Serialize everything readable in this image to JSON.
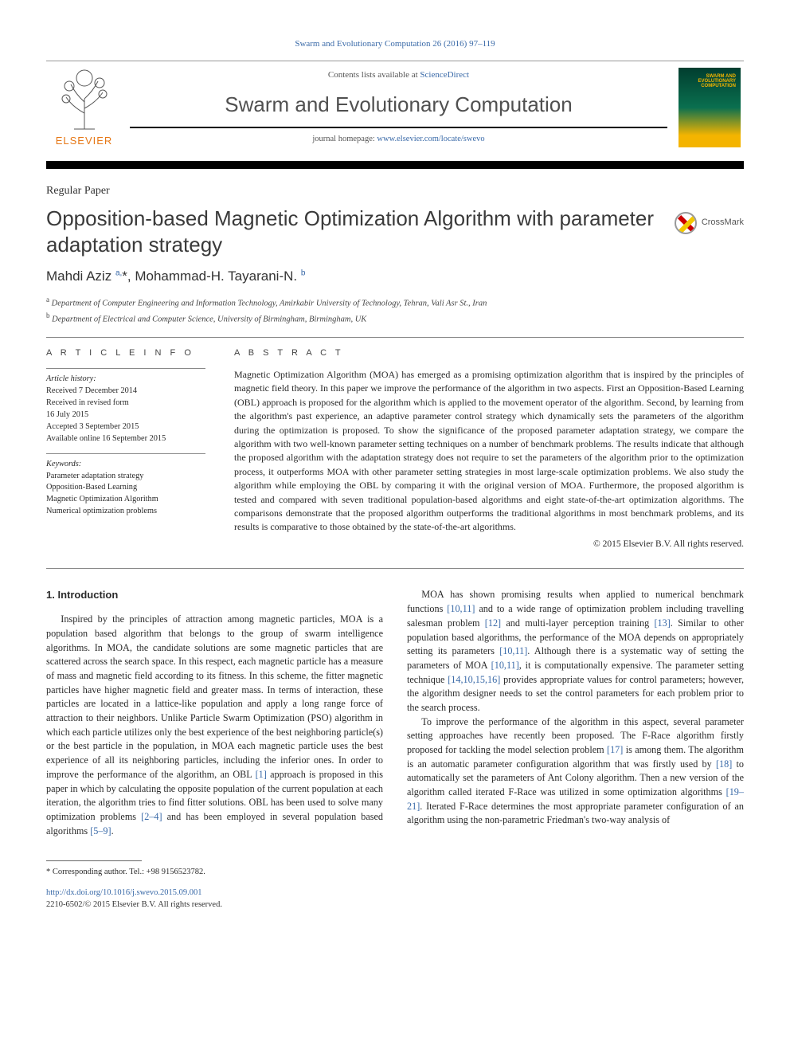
{
  "journal_ref": {
    "prefix": "Swarm and Evolutionary Computation 26 (2016) 97–119",
    "link_text": "Swarm and Evolutionary Computation 26 (2016) 97–119"
  },
  "header": {
    "contents_prefix": "Contents lists available at ",
    "contents_link": "ScienceDirect",
    "journal_title": "Swarm and Evolutionary Computation",
    "homepage_prefix": "journal homepage: ",
    "homepage_url": "www.elsevier.com/locate/swevo",
    "elsevier_word": "ELSEVIER",
    "cover_text": "SWARM AND\nEVOLUTIONARY\nCOMPUTATION"
  },
  "paper_type": "Regular Paper",
  "title": "Opposition-based Magnetic Optimization Algorithm with parameter adaptation strategy",
  "crossmark_label": "CrossMark",
  "authors_html": "Mahdi Aziz <sup>a,</sup><span class=\"star\">*</span>, Mohammad-H. Tayarani-N. <sup>b</sup>",
  "affiliations": [
    {
      "sup": "a",
      "text": "Department of Computer Engineering and Information Technology, Amirkabir University of Technology, Tehran, Vali Asr St., Iran"
    },
    {
      "sup": "b",
      "text": "Department of Electrical and Computer Science, University of Birmingham, Birmingham, UK"
    }
  ],
  "article_info_heading": "A R T I C L E  I N F O",
  "abstract_heading": "A B S T R A C T",
  "history": {
    "lead": "Article history:",
    "lines": [
      "Received 7 December 2014",
      "Received in revised form",
      "16 July 2015",
      "Accepted 3 September 2015",
      "Available online 16 September 2015"
    ]
  },
  "keywords": {
    "lead": "Keywords:",
    "items": [
      "Parameter adaptation strategy",
      "Opposition-Based Learning",
      "Magnetic Optimization Algorithm",
      "Numerical optimization problems"
    ]
  },
  "abstract": "Magnetic Optimization Algorithm (MOA) has emerged as a promising optimization algorithm that is inspired by the principles of magnetic field theory. In this paper we improve the performance of the algorithm in two aspects. First an Opposition-Based Learning (OBL) approach is proposed for the algorithm which is applied to the movement operator of the algorithm. Second, by learning from the algorithm's past experience, an adaptive parameter control strategy which dynamically sets the parameters of the algorithm during the optimization is proposed. To show the significance of the proposed parameter adaptation strategy, we compare the algorithm with two well-known parameter setting techniques on a number of benchmark problems. The results indicate that although the proposed algorithm with the adaptation strategy does not require to set the parameters of the algorithm prior to the optimization process, it outperforms MOA with other parameter setting strategies in most large-scale optimization problems. We also study the algorithm while employing the OBL by comparing it with the original version of MOA. Furthermore, the proposed algorithm is tested and compared with seven traditional population-based algorithms and eight state-of-the-art optimization algorithms. The comparisons demonstrate that the proposed algorithm outperforms the traditional algorithms in most benchmark problems, and its results is comparative to those obtained by the state-of-the-art algorithms.",
  "copyright_line": "© 2015 Elsevier B.V. All rights reserved.",
  "intro_heading": "1.  Introduction",
  "body_paragraphs": [
    "Inspired by the principles of attraction among magnetic particles, MOA is a population based algorithm that belongs to the group of swarm intelligence algorithms. In MOA, the candidate solutions are some magnetic particles that are scattered across the search space. In this respect, each magnetic particle has a measure of mass and magnetic field according to its fitness. In this scheme, the fitter magnetic particles have higher magnetic field and greater mass. In terms of interaction, these particles are located in a lattice-like population and apply a long range force of attraction to their neighbors. Unlike Particle Swarm Optimization (PSO) algorithm in which each particle utilizes only the best experience of the best neighboring particle(s) or the best particle in the population, in MOA each magnetic particle uses the best experience of all its neighboring particles, including the inferior ones. In order to improve the performance of the algorithm, an OBL <a class=\"cite\">[1]</a> approach is proposed in this paper in which by calculating the opposite population of the current population at each iteration, the algorithm tries to find fitter solutions. OBL has been used to solve many optimization problems <a class=\"cite\">[2–4]</a> and has been employed in several population based algorithms <a class=\"cite\">[5–9]</a>.",
    "MOA has shown promising results when applied to numerical benchmark functions <a class=\"cite\">[10,11]</a> and to a wide range of optimization problem including travelling salesman problem <a class=\"cite\">[12]</a> and multi-layer perception training <a class=\"cite\">[13]</a>. Similar to other population based algorithms, the performance of the MOA depends on appropriately setting its parameters <a class=\"cite\">[10,11]</a>. Although there is a systematic way of setting the parameters of MOA <a class=\"cite\">[10,11]</a>, it is computationally expensive. The parameter setting technique <a class=\"cite\">[14,10,15,16]</a> provides appropriate values for control parameters; however, the algorithm designer needs to set the control parameters for each problem prior to the search process.",
    "To improve the performance of the algorithm in this aspect, several parameter setting approaches have recently been proposed. The F-Race algorithm firstly proposed for tackling the model selection problem <a class=\"cite\">[17]</a> is among them. The algorithm is an automatic parameter configuration algorithm that was firstly used by <a class=\"cite\">[18]</a> to automatically set the parameters of Ant Colony algorithm. Then a new version of the algorithm called iterated F-Race was utilized in some optimization algorithms <a class=\"cite\">[19–21]</a>. Iterated F-Race determines the most appropriate parameter configuration of an algorithm using the non-parametric Friedman's two-way analysis of"
  ],
  "footnote": {
    "marker": "*",
    "text": "Corresponding author. Tel.: +98 9156523782."
  },
  "doi": "http://dx.doi.org/10.1016/j.swevo.2015.09.001",
  "issn_line": "2210-6502/© 2015 Elsevier B.V. All rights reserved.",
  "colors": {
    "link": "#3a6aa8",
    "elsevier_orange": "#e67817",
    "text": "#2a2a2a"
  }
}
